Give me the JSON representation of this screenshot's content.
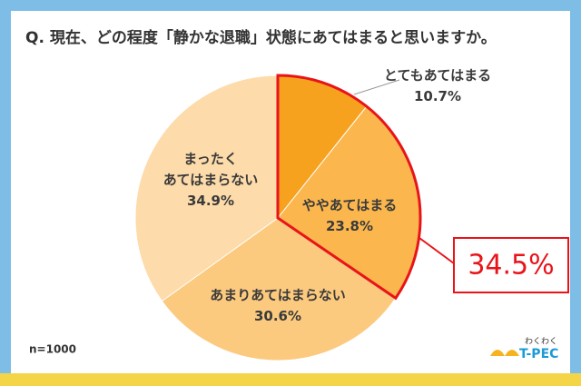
{
  "chart_data": {
    "type": "pie",
    "title": "Q. 現在、どの程度「静かな退職」状態にあてはまると思いますか。",
    "categories": [
      "とてもあてはまる",
      "ややあてはまる",
      "あまりあてはまらない",
      "まったく\nあてはまらない"
    ],
    "values": [
      10.7,
      23.8,
      30.6,
      34.9
    ],
    "value_labels": [
      "10.7%",
      "23.8%",
      "30.6%",
      "34.9%"
    ],
    "colors": [
      "#f7a21e",
      "#fbb74e",
      "#fcca7e",
      "#fddbaa"
    ],
    "highlight": [
      0,
      1
    ],
    "highlight_color": "#e8141a",
    "annotation": "34.5%",
    "note": "n=1000",
    "logo": {
      "small": "わくわく",
      "main": "T-PEC"
    }
  }
}
